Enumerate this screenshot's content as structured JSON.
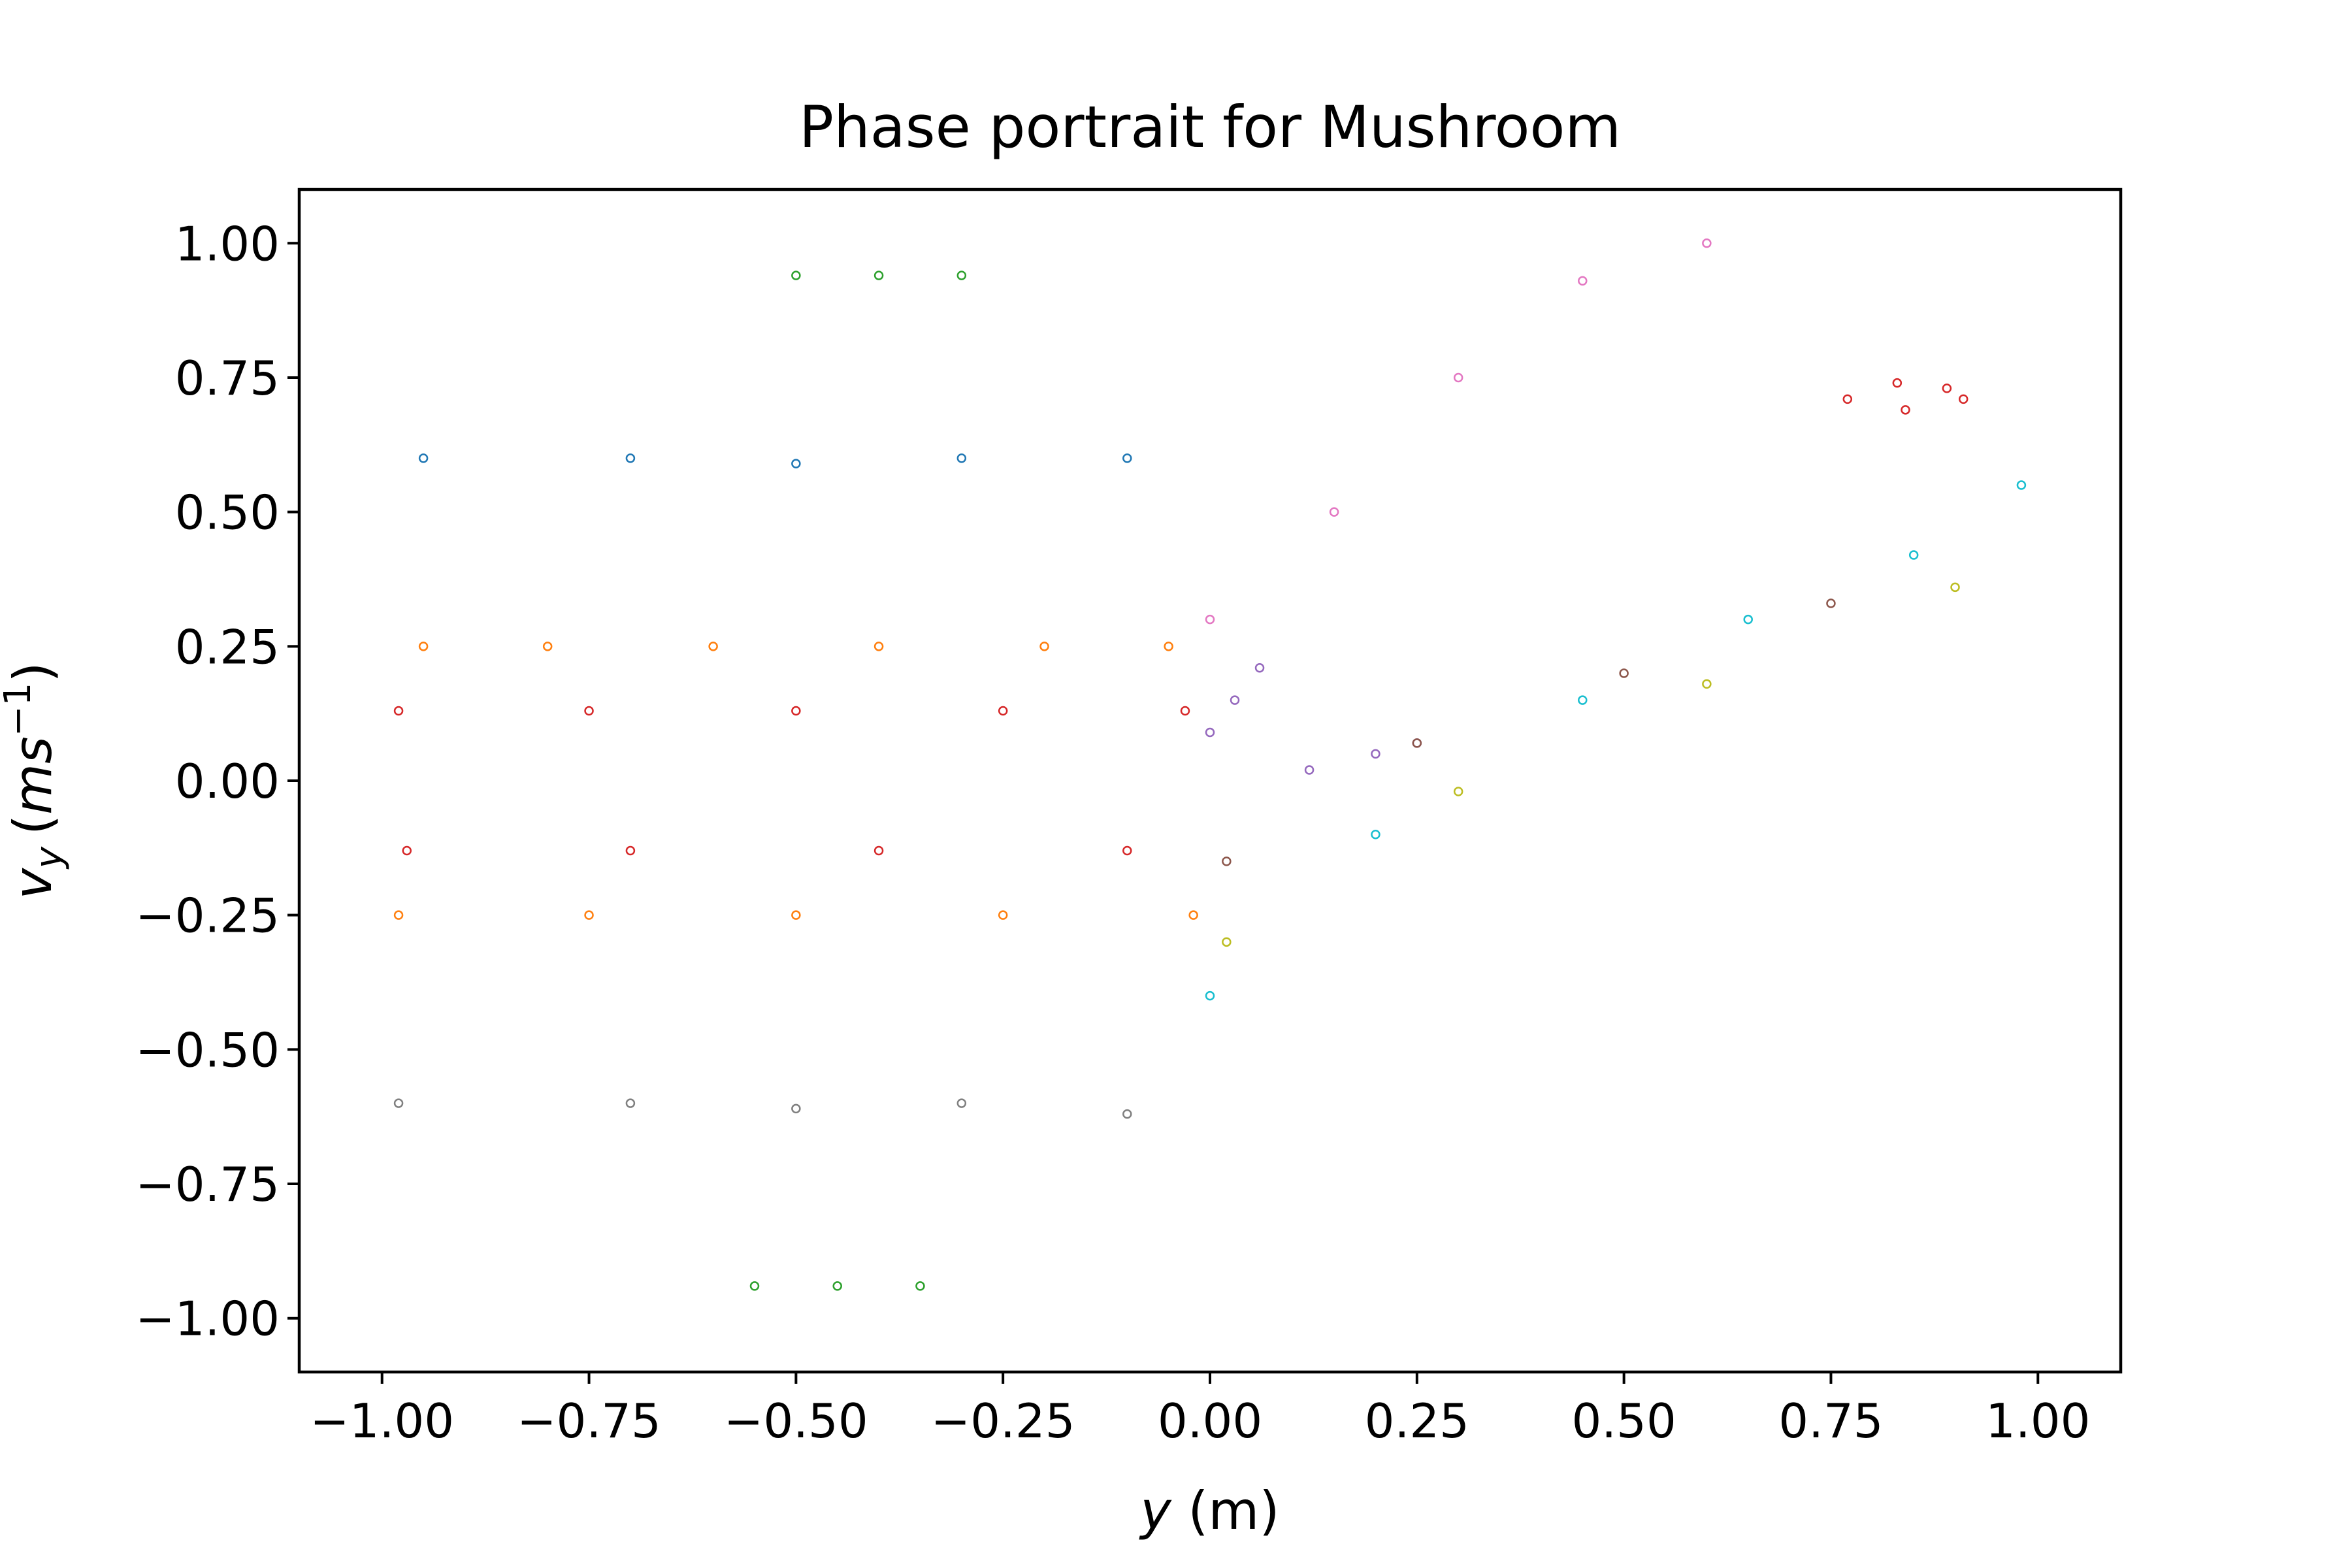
{
  "chart_data": {
    "type": "scatter",
    "title": "Phase portrait for Mushroom",
    "xlabel": {
      "var": "y",
      "unit": "(m)"
    },
    "ylabel": {
      "var": "v",
      "sub": "y",
      "unit_open": "(",
      "unit": "ms",
      "sup": "−1",
      "unit_close": ")"
    },
    "xlim": [
      -1.1,
      1.1
    ],
    "ylim": [
      -1.1,
      1.1
    ],
    "x_ticks": [
      -1.0,
      -0.75,
      -0.5,
      -0.25,
      0.0,
      0.25,
      0.5,
      0.75,
      1.0
    ],
    "x_tick_labels": [
      "−1.00",
      "−0.75",
      "−0.50",
      "−0.25",
      "0.00",
      "0.25",
      "0.50",
      "0.75",
      "1.00"
    ],
    "y_ticks": [
      1.0,
      0.75,
      0.5,
      0.25,
      0.0,
      -0.25,
      -0.5,
      -0.75,
      -1.0
    ],
    "y_tick_labels": [
      "1.00",
      "0.75",
      "0.50",
      "0.25",
      "0.00",
      "−0.25",
      "−0.50",
      "−0.75",
      "−1.00"
    ],
    "grid": false,
    "legend": false,
    "series_colors": [
      "#1f77b4",
      "#ff7f0e",
      "#2ca02c",
      "#d62728",
      "#9467bd",
      "#8c564b",
      "#e377c2",
      "#7f7f7f",
      "#bcbd22",
      "#17becf"
    ],
    "series": [
      {
        "color": "#ff7f0e",
        "points": [
          [
            -0.95,
            0.25
          ],
          [
            -0.8,
            0.25
          ],
          [
            -0.6,
            0.25
          ],
          [
            -0.4,
            0.25
          ],
          [
            -0.2,
            0.25
          ],
          [
            -0.05,
            0.25
          ]
        ]
      },
      {
        "color": "#d62728",
        "points": [
          [
            -0.98,
            0.13
          ],
          [
            -0.75,
            0.13
          ],
          [
            -0.5,
            0.13
          ],
          [
            -0.25,
            0.13
          ],
          [
            -0.03,
            0.13
          ]
        ]
      },
      {
        "color": "#1f77b4",
        "points": [
          [
            -0.95,
            0.6
          ],
          [
            -0.7,
            0.6
          ],
          [
            -0.5,
            0.59
          ],
          [
            -0.3,
            0.6
          ],
          [
            -0.1,
            0.6
          ]
        ]
      },
      {
        "color": "#2ca02c",
        "points": [
          [
            -0.5,
            0.94
          ],
          [
            -0.4,
            0.94
          ],
          [
            -0.3,
            0.94
          ]
        ]
      },
      {
        "color": "#ff7f0e",
        "points": [
          [
            -0.98,
            -0.25
          ],
          [
            -0.75,
            -0.25
          ],
          [
            -0.5,
            -0.25
          ],
          [
            -0.25,
            -0.25
          ],
          [
            -0.02,
            -0.25
          ]
        ]
      },
      {
        "color": "#d62728",
        "points": [
          [
            -0.97,
            -0.13
          ],
          [
            -0.7,
            -0.13
          ],
          [
            -0.4,
            -0.13
          ],
          [
            -0.1,
            -0.13
          ]
        ]
      },
      {
        "color": "#7f7f7f",
        "points": [
          [
            -0.98,
            -0.6
          ],
          [
            -0.7,
            -0.6
          ],
          [
            -0.5,
            -0.61
          ],
          [
            -0.3,
            -0.6
          ],
          [
            -0.1,
            -0.62
          ]
        ]
      },
      {
        "color": "#2ca02c",
        "points": [
          [
            -0.55,
            -0.94
          ],
          [
            -0.45,
            -0.94
          ],
          [
            -0.35,
            -0.94
          ]
        ]
      },
      {
        "color": "#d62728",
        "points": [
          [
            0.77,
            0.71
          ],
          [
            0.83,
            0.74
          ],
          [
            0.89,
            0.73
          ],
          [
            0.91,
            0.71
          ],
          [
            0.84,
            0.69
          ]
        ]
      },
      {
        "color": "#9467bd",
        "points": [
          [
            0.0,
            0.09
          ],
          [
            0.03,
            0.15
          ],
          [
            0.06,
            0.21
          ],
          [
            0.12,
            0.02
          ],
          [
            0.2,
            0.05
          ],
          [
            0.25,
            0.07
          ]
        ]
      },
      {
        "color": "#17becf",
        "points": [
          [
            0.0,
            -0.4
          ],
          [
            0.2,
            -0.1
          ],
          [
            0.45,
            0.15
          ],
          [
            0.65,
            0.3
          ],
          [
            0.85,
            0.42
          ],
          [
            0.98,
            0.55
          ]
        ]
      },
      {
        "color": "#e377c2",
        "points": [
          [
            0.0,
            0.3
          ],
          [
            0.15,
            0.5
          ],
          [
            0.3,
            0.75
          ],
          [
            0.45,
            0.93
          ],
          [
            0.6,
            1.0
          ]
        ]
      },
      {
        "color": "#bcbd22",
        "points": [
          [
            0.02,
            -0.3
          ],
          [
            0.3,
            -0.02
          ],
          [
            0.6,
            0.18
          ],
          [
            0.9,
            0.36
          ]
        ]
      },
      {
        "color": "#8c564b",
        "points": [
          [
            0.02,
            -0.15
          ],
          [
            0.25,
            0.07
          ],
          [
            0.5,
            0.2
          ],
          [
            0.75,
            0.33
          ]
        ]
      }
    ]
  }
}
